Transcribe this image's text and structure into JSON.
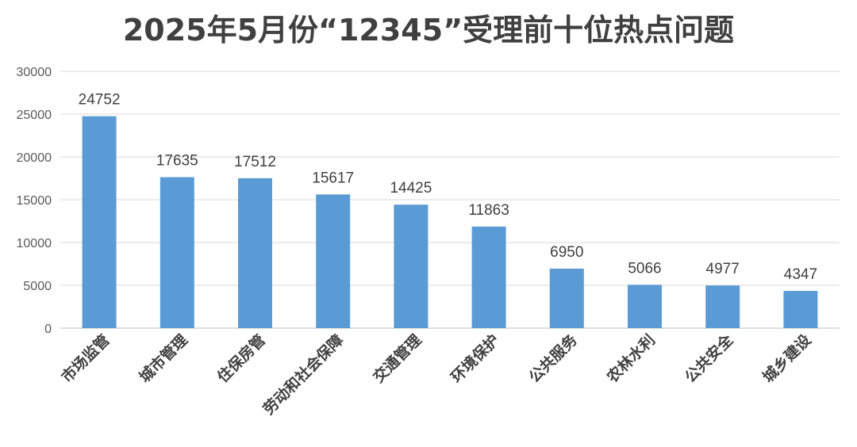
{
  "chart_data": {
    "type": "bar",
    "title": "2025年5月份“12345”受理前十位热点问题",
    "xlabel": "",
    "ylabel": "",
    "categories": [
      "市场监管",
      "城市管理",
      "住保房管",
      "劳动和社会保障",
      "交通管理",
      "环境保护",
      "公共服务",
      "农林水利",
      "公共安全",
      "城乡建设"
    ],
    "values": [
      24752,
      17635,
      17512,
      15617,
      14425,
      11863,
      6950,
      5066,
      4977,
      4347
    ],
    "data_labels": [
      "24752",
      "17635",
      "17512",
      "15617",
      "14425",
      "11863",
      "6950",
      "5066",
      "4977",
      "4347"
    ],
    "yticks": [
      "0",
      "5000",
      "10000",
      "15000",
      "20000",
      "25000",
      "30000"
    ],
    "ylim": [
      0,
      30000
    ],
    "grid": true,
    "legend": "none",
    "bar_color": "#5B9BD5"
  }
}
